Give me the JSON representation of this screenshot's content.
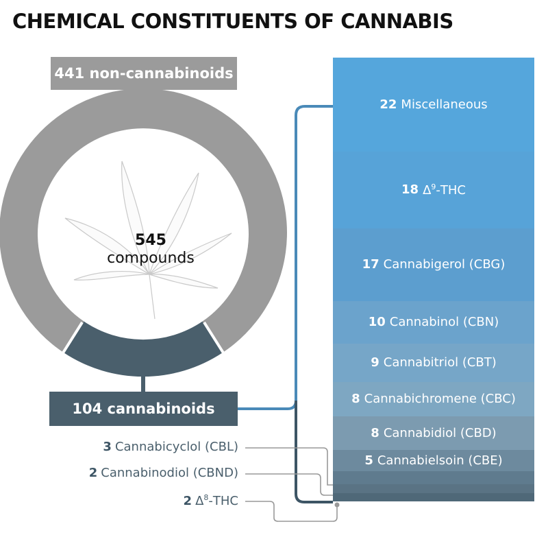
{
  "title": "CHEMICAL CONSTITUENTS OF CANNABIS",
  "non_cannabinoids": {
    "label": "441 non-cannabinoids",
    "value": 441
  },
  "cannabinoids": {
    "label": "104 cannabinoids",
    "value": 104
  },
  "total": {
    "number": "545",
    "unit": "compounds"
  },
  "colors": {
    "non_cannabinoid_gray": "#9b9b9b",
    "cannabinoid_slate": "#4a5f6c",
    "stack_top_blue": "#55a6dc",
    "connector_blue": "#4a8ab8",
    "leader_gray": "#999999"
  },
  "icons": [
    "cannabis-leaf-icon"
  ],
  "cannabinoid_breakdown": [
    {
      "count": "22",
      "name": "Miscellaneous",
      "value": 22,
      "color": "#55a6dc"
    },
    {
      "count": "18",
      "name_pre": "Δ",
      "name_sup": "9",
      "name_post": "-THC",
      "value": 18,
      "color": "#57a3d8"
    },
    {
      "count": "17",
      "name": "Cannabigerol (CBG)",
      "value": 17,
      "color": "#5c9ecf"
    },
    {
      "count": "10",
      "name": "Cannabinol (CBN)",
      "value": 10,
      "color": "#6ba3cc"
    },
    {
      "count": "9",
      "name": "Cannabitriol (CBT)",
      "value": 9,
      "color": "#76a6c8"
    },
    {
      "count": "8",
      "name": "Cannabichromene (CBC)",
      "value": 8,
      "color": "#7ea7c2"
    },
    {
      "count": "8",
      "name": "Cannabidiol (CBD)",
      "value": 8,
      "color": "#7c9bb0"
    },
    {
      "count": "5",
      "name": "Cannabielsoin (CBE)",
      "value": 5,
      "color": "#6d8a9e"
    },
    {
      "count": "3",
      "name": "Cannabicyclol (CBL)",
      "value": 3,
      "color": "#5f7b8e"
    },
    {
      "count": "2",
      "name": "Cannabinodiol (CBND)",
      "value": 2,
      "color": "#5a7384"
    },
    {
      "count": "2",
      "name_pre": "Δ",
      "name_sup": "8",
      "name_post": "-THC",
      "value": 2,
      "color": "#4f6878"
    }
  ]
}
